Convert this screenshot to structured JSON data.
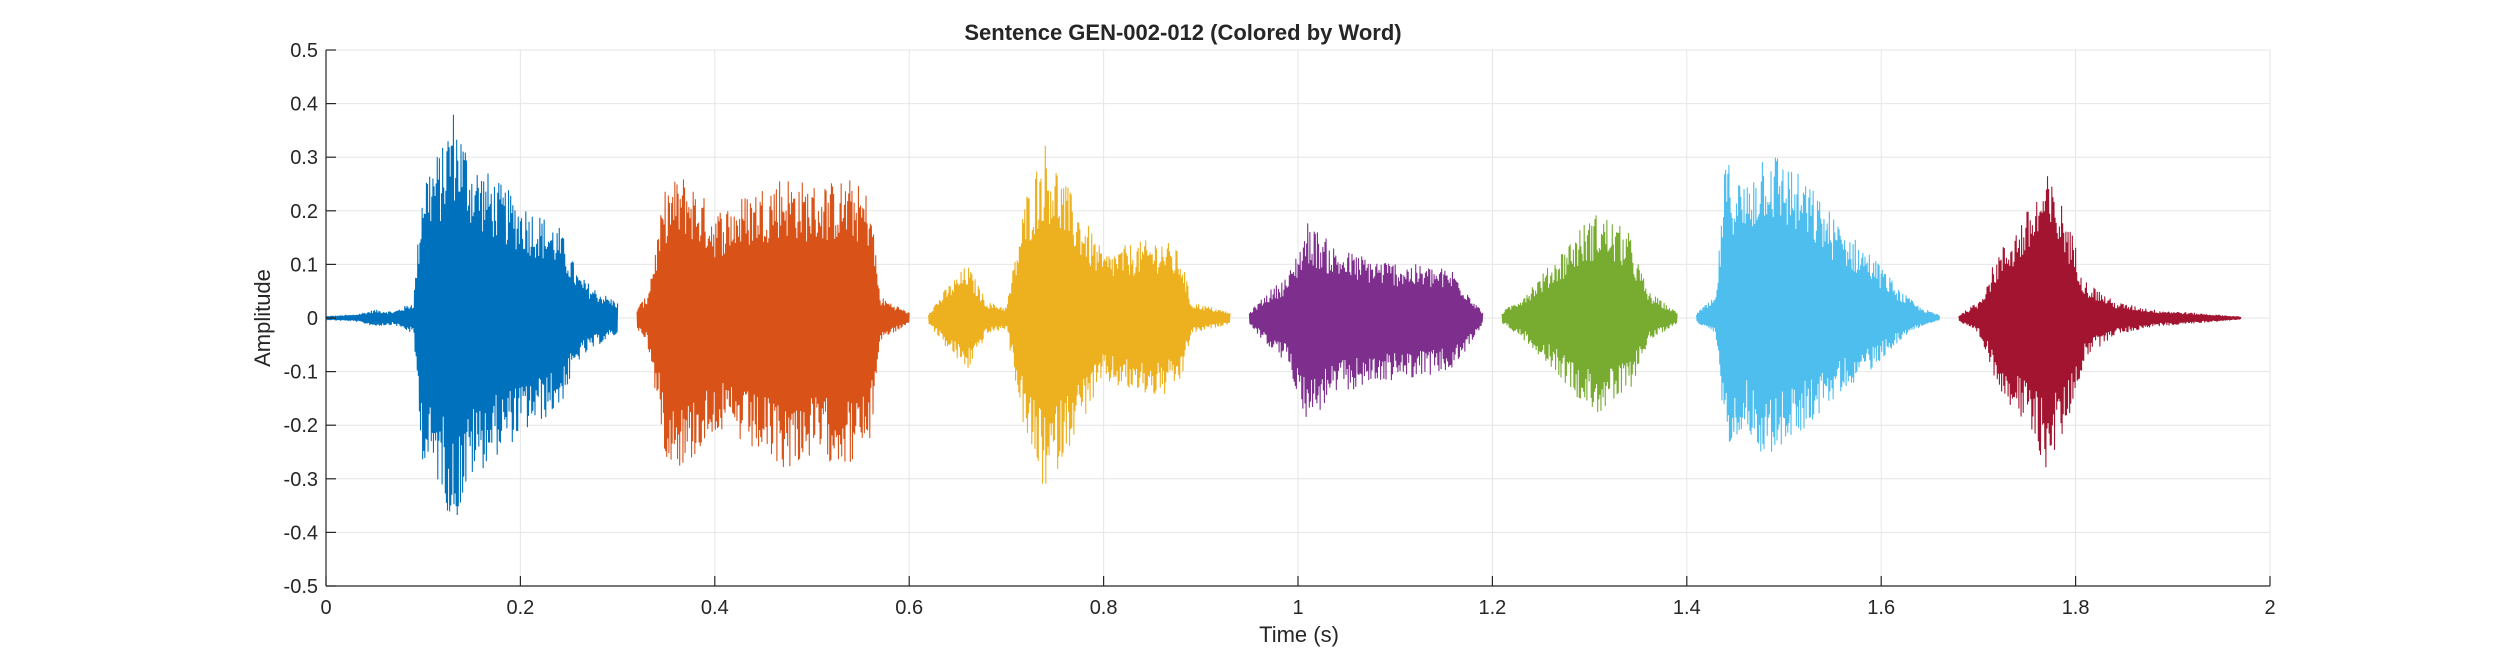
{
  "chart_data": {
    "type": "line",
    "title": "Sentence GEN-002-012 (Colored by Word)",
    "xlabel": "Time (s)",
    "ylabel": "Amplitude",
    "xlim": [
      0,
      2
    ],
    "ylim": [
      -0.5,
      0.5
    ],
    "xticks": [
      0,
      0.2,
      0.4,
      0.6,
      0.8,
      1,
      1.2,
      1.4,
      1.6,
      1.8,
      2
    ],
    "xtick_labels": [
      "0",
      "0.2",
      "0.4",
      "0.6",
      "0.8",
      "1",
      "1.2",
      "1.4",
      "1.6",
      "1.8",
      "2"
    ],
    "yticks": [
      -0.5,
      -0.4,
      -0.3,
      -0.2,
      -0.1,
      0,
      0.1,
      0.2,
      0.3,
      0.4,
      0.5
    ],
    "ytick_labels": [
      "-0.5",
      "-0.4",
      "-0.3",
      "-0.2",
      "-0.1",
      "0",
      "0.1",
      "0.2",
      "0.3",
      "0.4",
      "0.5"
    ],
    "grid": true,
    "series": [
      {
        "color": "#0072BD",
        "x_range": [
          0.0,
          0.3
        ],
        "envelope": [
          [
            0.0,
            0.003
          ],
          [
            0.03,
            0.006
          ],
          [
            0.05,
            0.015
          ],
          [
            0.07,
            0.012
          ],
          [
            0.09,
            0.03
          ],
          [
            0.1,
            0.28
          ],
          [
            0.12,
            0.32
          ],
          [
            0.13,
            0.4
          ],
          [
            0.15,
            0.3
          ],
          [
            0.18,
            0.25
          ],
          [
            0.2,
            0.22
          ],
          [
            0.24,
            0.17
          ],
          [
            0.26,
            0.08
          ],
          [
            0.28,
            0.05
          ],
          [
            0.3,
            0.03
          ]
        ],
        "neg_scale": 1.0
      },
      {
        "color": "#D95319",
        "x_range": [
          0.32,
          0.6
        ],
        "envelope": [
          [
            0.32,
            0.02
          ],
          [
            0.33,
            0.04
          ],
          [
            0.35,
            0.25
          ],
          [
            0.37,
            0.27
          ],
          [
            0.4,
            0.2
          ],
          [
            0.43,
            0.23
          ],
          [
            0.47,
            0.27
          ],
          [
            0.5,
            0.25
          ],
          [
            0.54,
            0.26
          ],
          [
            0.56,
            0.23
          ],
          [
            0.57,
            0.04
          ],
          [
            0.6,
            0.01
          ]
        ],
        "neg_scale": 1.05
      },
      {
        "color": "#EDB120",
        "x_range": [
          0.62,
          0.93
        ],
        "envelope": [
          [
            0.62,
            0.01
          ],
          [
            0.64,
            0.06
          ],
          [
            0.66,
            0.1
          ],
          [
            0.68,
            0.03
          ],
          [
            0.7,
            0.02
          ],
          [
            0.72,
            0.23
          ],
          [
            0.74,
            0.33
          ],
          [
            0.77,
            0.22
          ],
          [
            0.8,
            0.12
          ],
          [
            0.83,
            0.14
          ],
          [
            0.86,
            0.15
          ],
          [
            0.88,
            0.12
          ],
          [
            0.89,
            0.03
          ],
          [
            0.93,
            0.01
          ]
        ],
        "neg_scale": 1.0
      },
      {
        "color": "#7E2F8E",
        "x_range": [
          0.95,
          1.19
        ],
        "envelope": [
          [
            0.95,
            0.01
          ],
          [
            0.97,
            0.05
          ],
          [
            0.99,
            0.08
          ],
          [
            1.01,
            0.18
          ],
          [
            1.04,
            0.13
          ],
          [
            1.08,
            0.11
          ],
          [
            1.12,
            0.1
          ],
          [
            1.16,
            0.09
          ],
          [
            1.19,
            0.01
          ]
        ],
        "neg_scale": 1.1
      },
      {
        "color": "#77AC30",
        "x_range": [
          1.21,
          1.39
        ],
        "envelope": [
          [
            1.21,
            0.01
          ],
          [
            1.23,
            0.04
          ],
          [
            1.26,
            0.1
          ],
          [
            1.29,
            0.17
          ],
          [
            1.31,
            0.2
          ],
          [
            1.34,
            0.16
          ],
          [
            1.36,
            0.05
          ],
          [
            1.39,
            0.01
          ]
        ],
        "neg_scale": 0.9
      },
      {
        "color": "#4DBEEE",
        "x_range": [
          1.41,
          1.66
        ],
        "envelope": [
          [
            1.41,
            0.01
          ],
          [
            1.43,
            0.04
          ],
          [
            1.44,
            0.3
          ],
          [
            1.46,
            0.25
          ],
          [
            1.48,
            0.33
          ],
          [
            1.5,
            0.3
          ],
          [
            1.53,
            0.24
          ],
          [
            1.56,
            0.17
          ],
          [
            1.59,
            0.12
          ],
          [
            1.62,
            0.05
          ],
          [
            1.64,
            0.02
          ],
          [
            1.66,
            0.005
          ]
        ],
        "neg_scale": 0.8
      },
      {
        "color": "#A2142F",
        "x_range": [
          1.68,
          1.97
        ],
        "envelope": [
          [
            1.68,
            0.005
          ],
          [
            1.7,
            0.03
          ],
          [
            1.72,
            0.12
          ],
          [
            1.75,
            0.2
          ],
          [
            1.77,
            0.27
          ],
          [
            1.79,
            0.2
          ],
          [
            1.81,
            0.07
          ],
          [
            1.84,
            0.03
          ],
          [
            1.88,
            0.015
          ],
          [
            1.93,
            0.008
          ],
          [
            1.97,
            0.002
          ]
        ],
        "neg_scale": 1.05
      }
    ]
  }
}
